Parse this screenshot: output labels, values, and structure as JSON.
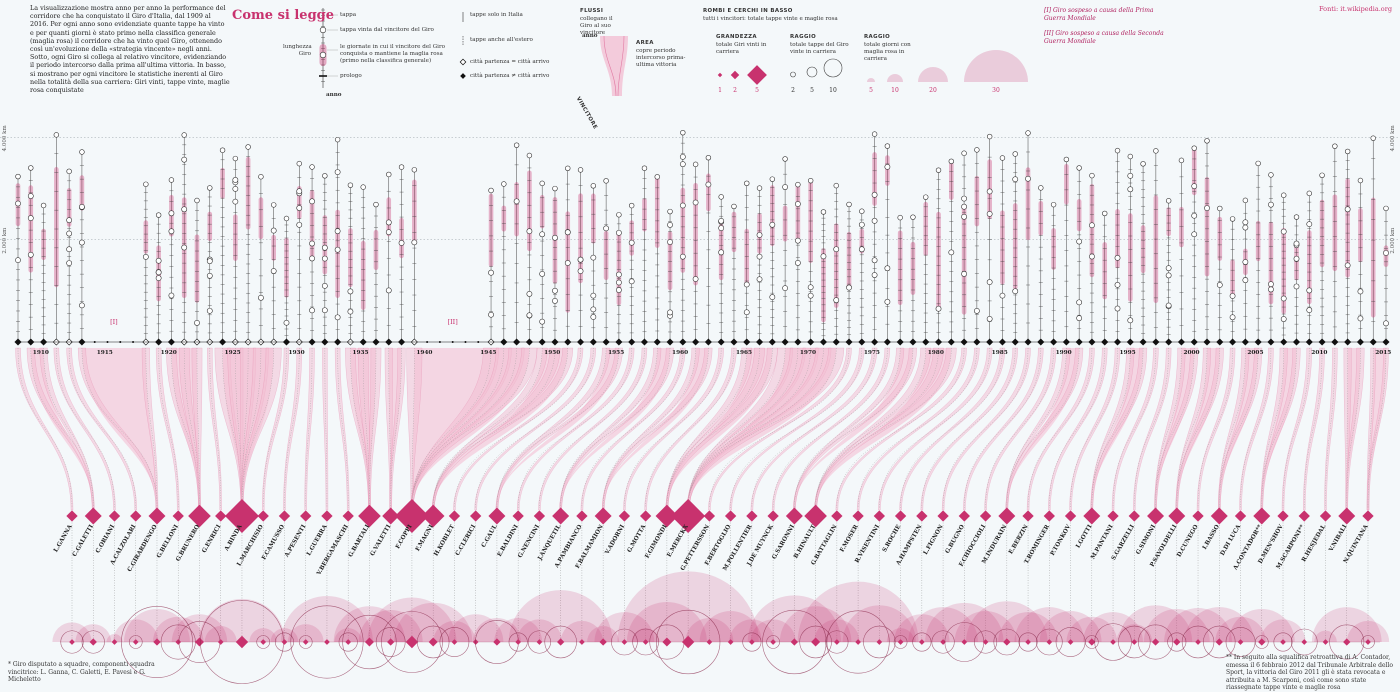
{
  "page": {
    "legend_title": "Come si legge",
    "intro_text": "La visualizzazione mostra anno per anno la performance del corridore che ha conquistato il Giro d'Italia, dal 1909 al 2016. Per ogni anno sono evidenziate quante tappe ha vinto e per quanti giorni è stato primo nella classifica generale (maglia rosa) il corridore che ha vinto quel Giro, ottenendo così un'evoluzione della «strategia vincente» negli anni. Sotto, ogni Giro si collega al relativo vincitore, evidenziando il periodo intercorso dalla prima all'ultima vittoria. In basso, si mostrano per ogni vincitore le statistiche inerenti al Giro nella totalità della sua carriera: Giri vinti, tappe vinte, maglie rosa conquistate",
    "source": "Fonti: it.wikipedia.org",
    "note_1": "[I] Giro sospeso a causa della Prima Guerra Mondiale",
    "note_2": "[II] Giro sospeso a causa della Seconda Guerra Mondiale",
    "foot_left": "* Giro disputato a squadre, componenti squadra vincitrice: L. Ganna, C. Galetti, E. Pavesi e G. Micheletto",
    "foot_right": "** In seguito alla squalifica retroattiva di A. Contador, emessa il 6 febbraio 2012 dal Tribunale Arbitrale dello Sport, la vittoria del Giro 2011 gli è stata revocata e attribuita a M. Scarponi, così come sono state riassegnate tappe vinte e maglie rosa",
    "axis_km_4000": "4.000 km",
    "axis_km_2000": "2.000 km",
    "war_1": "[I]",
    "war_2": "[II]"
  },
  "legend": {
    "tappa": "tappa",
    "tappa_vinta": "tappa vinta dal vincitore del Giro",
    "giornate": "le giornate in cui il vincitore del Giro conquista o mantiene la maglia rosa (primo nella classifica generale)",
    "prologo": "prologo",
    "lunghezza": "lunghezza Giro",
    "anno": "anno",
    "solo_italia": "tappe solo in Italia",
    "anche_estero": "tappe anche all'estero",
    "partenza_eq": "città partenza = città arrivo",
    "partenza_neq": "città partenza ≠ città arrivo",
    "flussi_title": "FLUSSI",
    "flussi_text": "collegano il Giro al suo vincitore",
    "flussi_anno": "anno",
    "flussi_vincitore": "VINCITORE",
    "area_title": "AREA",
    "area_text": "copre periodo intercorso prima-ultima vittoria",
    "rombi_title": "ROMBI E CERCHI IN BASSO",
    "rombi_text": "tutti i vincitori: totale tappe vinte e maglie rosa",
    "grandezza_title": "GRANDEZZA",
    "grandezza_text": "totale Giri vinti in carriera",
    "raggio1_title": "RAGGIO",
    "raggio1_text": "totale tappe del Giro vinte in carriera",
    "raggio2_title": "RAGGIO",
    "raggio2_text": "totale giorni con maglia rosa in carriera",
    "g_vals": [
      "1",
      "2",
      "5"
    ],
    "t_vals": [
      "2",
      "5",
      "10"
    ],
    "m_vals": [
      "5",
      "10",
      "20",
      "30"
    ]
  },
  "colors": {
    "accent": "#c8326e",
    "pink_light": "#f3bfd3",
    "pink_mid": "#e17aa3",
    "ink": "#222222",
    "grid": "#9aa5ab"
  },
  "chart_data": {
    "type": "timeline",
    "year_range": [
      1909,
      2016
    ],
    "cancelled_years": [
      1915,
      1916,
      1917,
      1918,
      1941,
      1942,
      1943,
      1944,
      1945
    ],
    "decade_labels": [
      "1910",
      "1915",
      "1920",
      "1925",
      "1930",
      "1935",
      "1940",
      "1945",
      "1950",
      "1955",
      "1960",
      "1965",
      "1970",
      "1975",
      "1980",
      "1985",
      "1990",
      "1995",
      "2000",
      "2005",
      "2010",
      "2015"
    ],
    "y_axis": {
      "unit": "km",
      "ticks": [
        "2.000 km",
        "4.000 km"
      ],
      "range": [
        0,
        4300
      ]
    },
    "winners": [
      {
        "name": "L.GANNA",
        "giri": 1,
        "tappe": 3,
        "maglie": 6
      },
      {
        "name": "C.GALETTI",
        "giri": 2,
        "tappe": 3,
        "maglie": 5
      },
      {
        "name": "C.ORIANI",
        "giri": 1,
        "tappe": 0,
        "maglie": 1
      },
      {
        "name": "A.CALZOLARI",
        "giri": 1,
        "tappe": 1,
        "maglie": 8
      },
      {
        "name": "C.GIRARDENGO",
        "giri": 2,
        "tappe": 30,
        "maglie": 17
      },
      {
        "name": "G.BELLONI",
        "giri": 1,
        "tappe": 7,
        "maglie": 10
      },
      {
        "name": "G.BRUNERO",
        "giri": 3,
        "tappe": 10,
        "maglie": 12
      },
      {
        "name": "G.ENRICI",
        "giri": 1,
        "tappe": 0,
        "maglie": 4
      },
      {
        "name": "A.BINDA",
        "giri": 5,
        "tappe": 41,
        "maglie": 29
      },
      {
        "name": "L.MARCHISIO",
        "giri": 1,
        "tappe": 1,
        "maglie": 3
      },
      {
        "name": "F.CAMUSSO",
        "giri": 1,
        "tappe": 2,
        "maglie": 3
      },
      {
        "name": "A.PESENTI",
        "giri": 1,
        "tappe": 1,
        "maglie": 5
      },
      {
        "name": "L.GUERRA",
        "giri": 1,
        "tappe": 31,
        "maglie": 33
      },
      {
        "name": "V.BERGAMASCHI",
        "giri": 1,
        "tappe": 2,
        "maglie": 3
      },
      {
        "name": "G.BARTALI",
        "giri": 3,
        "tappe": 17,
        "maglie": 20
      },
      {
        "name": "G.VALETTI",
        "giri": 2,
        "tappe": 5,
        "maglie": 16
      },
      {
        "name": "F.COPPI",
        "giri": 5,
        "tappe": 22,
        "maglie": 31
      },
      {
        "name": "F.MAGNI",
        "giri": 3,
        "tappe": 6,
        "maglie": 24
      },
      {
        "name": "H.KOBLET",
        "giri": 1,
        "tappe": 5,
        "maglie": 7
      },
      {
        "name": "C.CLERICI",
        "giri": 1,
        "tappe": 0,
        "maglie": 12
      },
      {
        "name": "C.GAUL",
        "giri": 2,
        "tappe": 11,
        "maglie": 9
      },
      {
        "name": "E.BALDINI",
        "giri": 1,
        "tappe": 2,
        "maglie": 9
      },
      {
        "name": "G.NENCINI",
        "giri": 1,
        "tappe": 3,
        "maglie": 8
      },
      {
        "name": "J.ANQUETIL",
        "giri": 2,
        "tappe": 6,
        "maglie": 42
      },
      {
        "name": "A.PAMBIANCO",
        "giri": 1,
        "tappe": 0,
        "maglie": 7
      },
      {
        "name": "F.BALMAMION",
        "giri": 2,
        "tappe": 0,
        "maglie": 4
      },
      {
        "name": "V.ADORNI",
        "giri": 1,
        "tappe": 4,
        "maglie": 14
      },
      {
        "name": "G.MOTTA",
        "giri": 1,
        "tappe": 4,
        "maglie": 3
      },
      {
        "name": "F.GIMONDI",
        "giri": 3,
        "tappe": 7,
        "maglie": 25
      },
      {
        "name": "E.MERCKX",
        "giri": 5,
        "tappe": 24,
        "maglie": 78
      },
      {
        "name": "G.PETTERSSON",
        "giri": 1,
        "tappe": 0,
        "maglie": 9
      },
      {
        "name": "F.BERTOGLIO",
        "giri": 1,
        "tappe": 0,
        "maglie": 15
      },
      {
        "name": "M.POLLENTIER",
        "giri": 1,
        "tappe": 2,
        "maglie": 8
      },
      {
        "name": "J.DE MUYNCK",
        "giri": 1,
        "tappe": 1,
        "maglie": 8
      },
      {
        "name": "G.SARONNI",
        "giri": 2,
        "tappe": 24,
        "maglie": 34
      },
      {
        "name": "B.HINAULT",
        "giri": 3,
        "tappe": 6,
        "maglie": 20
      },
      {
        "name": "G.BATTAGLIN",
        "giri": 1,
        "tappe": 3,
        "maglie": 8
      },
      {
        "name": "F.MOSER",
        "giri": 1,
        "tappe": 23,
        "maglie": 57
      },
      {
        "name": "R.VISENTINI",
        "giri": 1,
        "tappe": 6,
        "maglie": 21
      },
      {
        "name": "S.ROCHE",
        "giri": 1,
        "tappe": 1,
        "maglie": 3
      },
      {
        "name": "A.HAMPSTEN",
        "giri": 1,
        "tappe": 2,
        "maglie": 12
      },
      {
        "name": "L.FIGNON",
        "giri": 1,
        "tappe": 3,
        "maglie": 19
      },
      {
        "name": "G.BUGNO",
        "giri": 1,
        "tappe": 9,
        "maglie": 24
      },
      {
        "name": "F.CHIOCCIOLI",
        "giri": 1,
        "tappe": 3,
        "maglie": 15
      },
      {
        "name": "M.INDURAIN",
        "giri": 2,
        "tappe": 4,
        "maglie": 26
      },
      {
        "name": "E.BERZIN",
        "giri": 1,
        "tappe": 2,
        "maglie": 14
      },
      {
        "name": "T.ROMINGER",
        "giri": 1,
        "tappe": 4,
        "maglie": 19
      },
      {
        "name": "P.TONKOV",
        "giri": 1,
        "tappe": 5,
        "maglie": 15
      },
      {
        "name": "I.GOTTI",
        "giri": 2,
        "tappe": 1,
        "maglie": 10
      },
      {
        "name": "M.PANTANI",
        "giri": 1,
        "tappe": 8,
        "maglie": 14
      },
      {
        "name": "S.GARZELLI",
        "giri": 1,
        "tappe": 6,
        "maglie": 5
      },
      {
        "name": "G.SIMONI",
        "giri": 2,
        "tappe": 7,
        "maglie": 21
      },
      {
        "name": "P.SAVOLDELLI",
        "giri": 2,
        "tappe": 2,
        "maglie": 17
      },
      {
        "name": "D.CUNEGO",
        "giri": 1,
        "tappe": 6,
        "maglie": 18
      },
      {
        "name": "I.BASSO",
        "giri": 2,
        "tappe": 6,
        "maglie": 19
      },
      {
        "name": "D.DI LUCA",
        "giri": 1,
        "tappe": 5,
        "maglie": 10
      },
      {
        "name": "A.CONTADOR**",
        "giri": 2,
        "tappe": 1,
        "maglie": 17
      },
      {
        "name": "D.MEN'SHOV",
        "giri": 1,
        "tappe": 2,
        "maglie": 8
      },
      {
        "name": "M.SCARPONI**",
        "giri": 1,
        "tappe": 4,
        "maglie": 0
      },
      {
        "name": "R.HESJEDAL",
        "giri": 1,
        "tappe": 0,
        "maglie": 2
      },
      {
        "name": "V.NIBALI",
        "giri": 2,
        "tappe": 7,
        "maglie": 19
      },
      {
        "name": "N.QUINTANA",
        "giri": 1,
        "tappe": 1,
        "maglie": 7
      }
    ]
  }
}
